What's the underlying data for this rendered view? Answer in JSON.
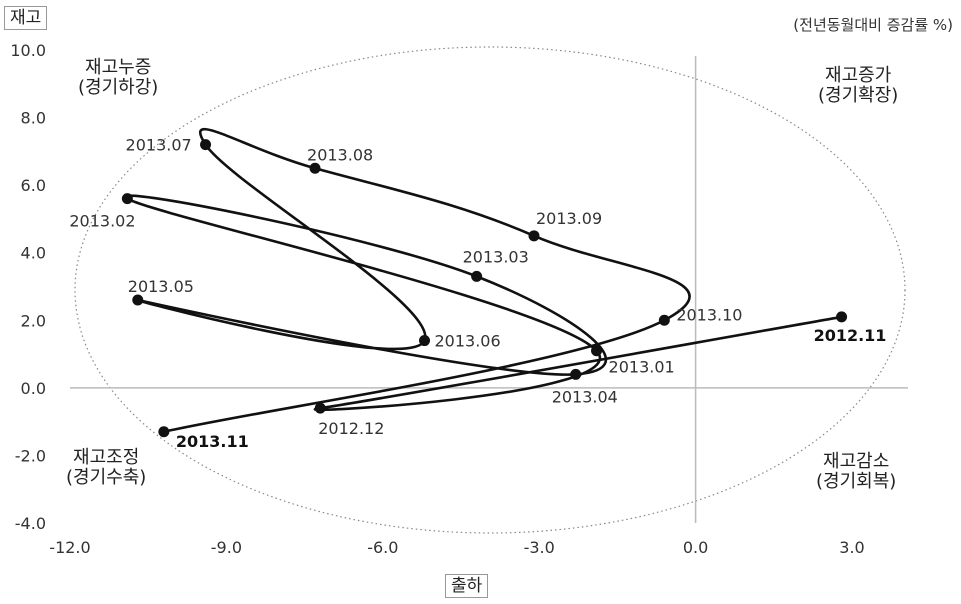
{
  "chart_data": {
    "type": "scatter",
    "title": "",
    "xlabel": "출하",
    "ylabel": "재고",
    "unit_note": "(전년동월대비 증감률 %)",
    "xlim": [
      -12.0,
      3.0
    ],
    "ylim": [
      -4.0,
      10.0
    ],
    "x_ticks": [
      "-12.0",
      "-9.0",
      "-6.0",
      "-3.0",
      "0.0",
      "3.0"
    ],
    "y_ticks": [
      "-4.0",
      "-2.0",
      "0.0",
      "2.0",
      "4.0",
      "6.0",
      "8.0",
      "10.0"
    ],
    "quadrants": {
      "top_left": [
        "재고누증",
        "(경기하강)"
      ],
      "top_right": [
        "재고증가",
        "(경기확장)"
      ],
      "bottom_left": [
        "재고조정",
        "(경기수축)"
      ],
      "bottom_right": [
        "재고감소",
        "(경기회복)"
      ]
    },
    "points": [
      {
        "label": "2012.11",
        "x": 2.8,
        "y": 2.1,
        "bold": true
      },
      {
        "label": "2012.12",
        "x": -7.2,
        "y": -0.6,
        "bold": false
      },
      {
        "label": "2013.01",
        "x": -1.9,
        "y": 1.1,
        "bold": false
      },
      {
        "label": "2013.02",
        "x": -10.9,
        "y": 5.6,
        "bold": false
      },
      {
        "label": "2013.03",
        "x": -4.2,
        "y": 3.3,
        "bold": false
      },
      {
        "label": "2013.04",
        "x": -2.3,
        "y": 0.4,
        "bold": false
      },
      {
        "label": "2013.05",
        "x": -10.7,
        "y": 2.6,
        "bold": false
      },
      {
        "label": "2013.06",
        "x": -5.2,
        "y": 1.4,
        "bold": false
      },
      {
        "label": "2013.07",
        "x": -9.4,
        "y": 7.2,
        "bold": false
      },
      {
        "label": "2013.08",
        "x": -7.3,
        "y": 6.5,
        "bold": false
      },
      {
        "label": "2013.09",
        "x": -3.1,
        "y": 4.5,
        "bold": false
      },
      {
        "label": "2013.10",
        "x": -0.6,
        "y": 2.0,
        "bold": false
      },
      {
        "label": "2013.11",
        "x": -10.2,
        "y": -1.3,
        "bold": true
      }
    ]
  }
}
